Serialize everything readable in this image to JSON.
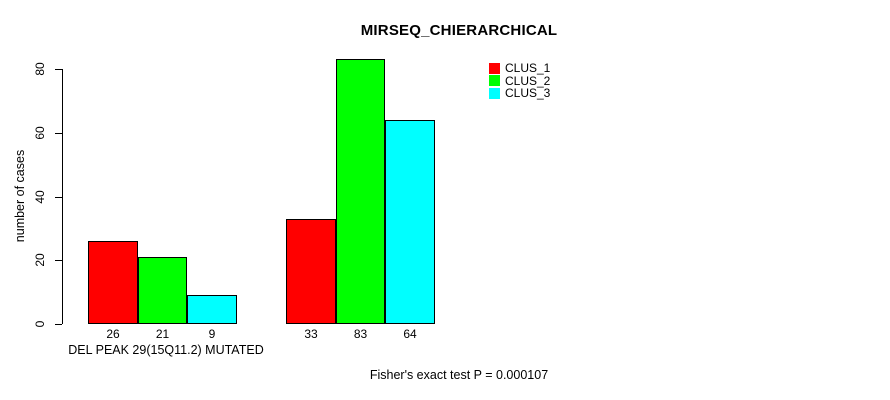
{
  "title": "MIRSEQ_CHIERARCHICAL",
  "y_axis": {
    "label": "number of cases"
  },
  "x_axis": {
    "label": "DEL PEAK 29(15Q11.2) MUTATED"
  },
  "footer_text": "Fisher's exact test P = 0.000107",
  "legend": {
    "items": [
      {
        "label": "CLUS_1",
        "color": "#ff0000"
      },
      {
        "label": "CLUS_2",
        "color": "#00ff00"
      },
      {
        "label": "CLUS_3",
        "color": "#00ffff"
      }
    ]
  },
  "chart_data": {
    "type": "bar",
    "grouped": true,
    "title": "MIRSEQ_CHIERARCHICAL",
    "ylabel": "number of cases",
    "xlabel": "DEL PEAK 29(15Q11.2) MUTATED",
    "ylim": [
      0,
      85
    ],
    "yticks": [
      0,
      20,
      40,
      60,
      80
    ],
    "grid": false,
    "legend_position": "top-right",
    "bar_value_labels_shown": true,
    "series": [
      {
        "name": "CLUS_1",
        "color": "#ff0000",
        "values": [
          26,
          33
        ]
      },
      {
        "name": "CLUS_2",
        "color": "#00ff00",
        "values": [
          21,
          83
        ]
      },
      {
        "name": "CLUS_3",
        "color": "#00ffff",
        "values": [
          9,
          64
        ]
      }
    ],
    "annotation": "Fisher's exact test P = 0.000107"
  }
}
